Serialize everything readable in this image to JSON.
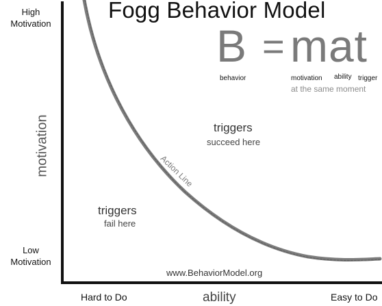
{
  "title": "Fogg Behavior Model",
  "y_axis": {
    "label": "motivation",
    "high": [
      "High",
      "Motivation"
    ],
    "low": [
      "Low",
      "Motivation"
    ]
  },
  "x_axis": {
    "label": "ability",
    "low": "Hard to Do",
    "high": "Easy to Do"
  },
  "formula": {
    "b": "B",
    "equals": "=",
    "mat": "mat",
    "labels": {
      "behavior": "behavior",
      "motivation": "motivation",
      "ability": "ability",
      "trigger": "trigger"
    },
    "note": "at the same moment"
  },
  "regions": {
    "succeed": {
      "title": "triggers",
      "subtitle": "succeed here"
    },
    "fail": {
      "title": "triggers",
      "subtitle": "fail here"
    }
  },
  "curve_label": "Action Line",
  "website": "www.BehaviorModel.org",
  "colors": {
    "axis": "#111111",
    "curve": "#777777",
    "formula": "#7a7a7a"
  }
}
